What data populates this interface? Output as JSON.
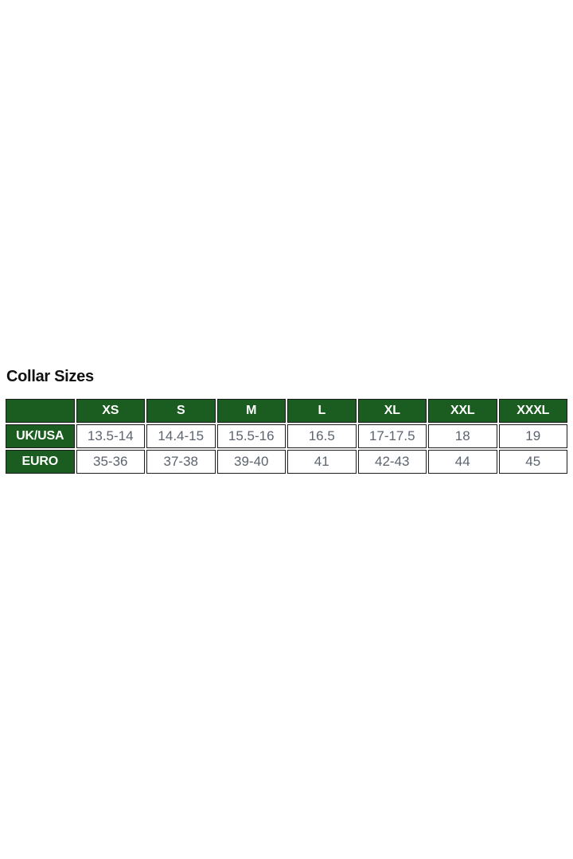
{
  "page": {
    "background": "#ffffff"
  },
  "section": {
    "title": "Collar Sizes"
  },
  "table": {
    "columns": [
      "",
      "XS",
      "S",
      "M",
      "L",
      "XL",
      "XXL",
      "XXXL"
    ],
    "rows": [
      {
        "label": "UK/USA",
        "values": [
          "13.5-14",
          "14.4-15",
          "15.5-16",
          "16.5",
          "17-17.5",
          "18",
          "19"
        ]
      },
      {
        "label": "EURO",
        "values": [
          "35-36",
          "37-38",
          "39-40",
          "41",
          "42-43",
          "44",
          "45"
        ]
      }
    ],
    "colors": {
      "header_bg": "#1b5c20",
      "header_text": "#ffffff",
      "cell_text": "#5c6470",
      "border": "#1c1c1c"
    }
  }
}
